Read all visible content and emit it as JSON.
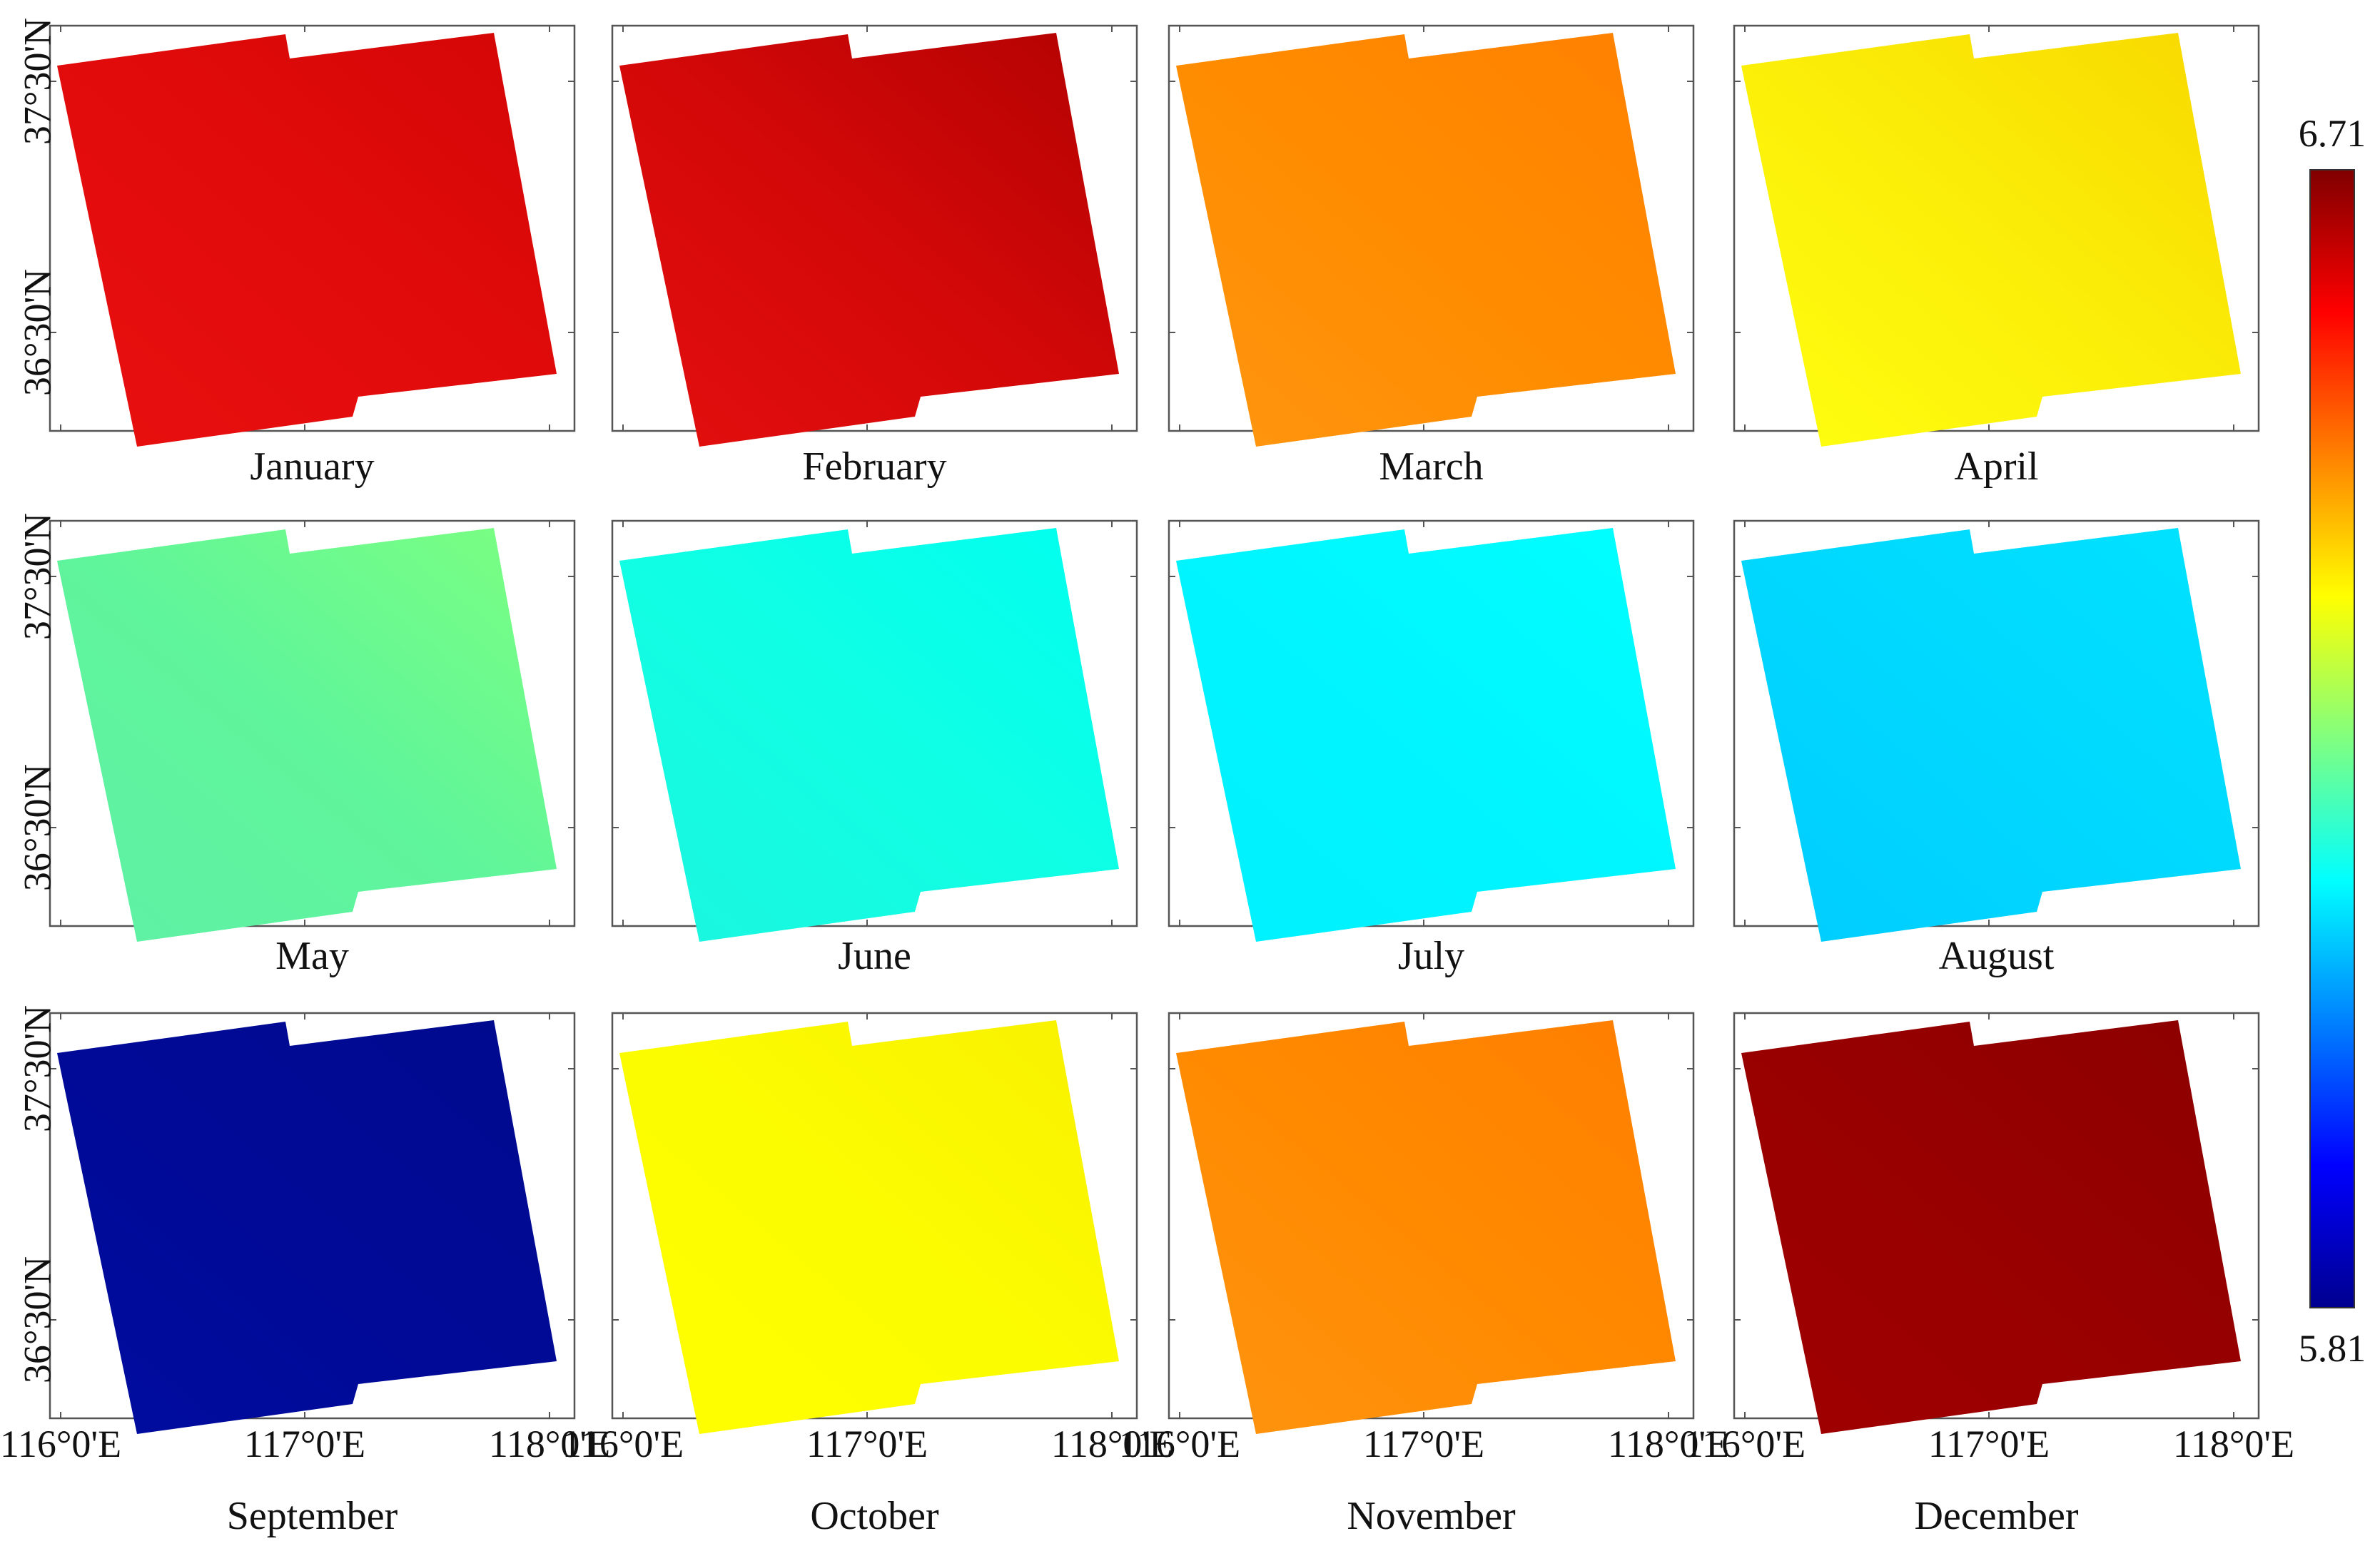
{
  "figure": {
    "panels": [
      {
        "month": "January",
        "color": "#e20b0b",
        "color_light": "#e80f0f",
        "color_dark": "#d40606"
      },
      {
        "month": "February",
        "color": "#d40808",
        "color_light": "#e40f0f",
        "color_dark": "#b30202"
      },
      {
        "month": "March",
        "color": "#ff8c00",
        "color_light": "#ff9610",
        "color_dark": "#ff8000"
      },
      {
        "month": "April",
        "color": "#fbee08",
        "color_light": "#ffff10",
        "color_dark": "#f8d800"
      },
      {
        "month": "May",
        "color": "#5ff59b",
        "color_light": "#5ff0a6",
        "color_dark": "#7cff80"
      },
      {
        "month": "June",
        "color": "#10ffe4",
        "color_light": "#1cf5df",
        "color_dark": "#00fff0"
      },
      {
        "month": "July",
        "color": "#00f5ff",
        "color_light": "#00f0ff",
        "color_dark": "#00ffff"
      },
      {
        "month": "August",
        "color": "#00d8ff",
        "color_light": "#00ccff",
        "color_dark": "#00e2ff"
      },
      {
        "month": "September",
        "color": "#000a96",
        "color_light": "#000ca0",
        "color_dark": "#000a8e"
      },
      {
        "month": "October",
        "color": "#fcfc00",
        "color_light": "#ffff00",
        "color_dark": "#f8f000"
      },
      {
        "month": "November",
        "color": "#ff8a00",
        "color_light": "#ff9410",
        "color_dark": "#ff7e00"
      },
      {
        "month": "December",
        "color": "#980000",
        "color_light": "#a00000",
        "color_dark": "#8c0000"
      }
    ],
    "lat_labels": [
      "37°30'N",
      "36°30'N"
    ],
    "lon_labels": [
      "116°0'E",
      "117°0'E",
      "118°0'E"
    ],
    "colorbar": {
      "max_label": "6.71",
      "min_label": "5.81",
      "max": 6.71,
      "min": 5.81,
      "stops": [
        "#00008f",
        "#0000ff",
        "#0080ff",
        "#00ffff",
        "#80ff80",
        "#ffff00",
        "#ff8000",
        "#ff0000",
        "#800000"
      ]
    }
  }
}
